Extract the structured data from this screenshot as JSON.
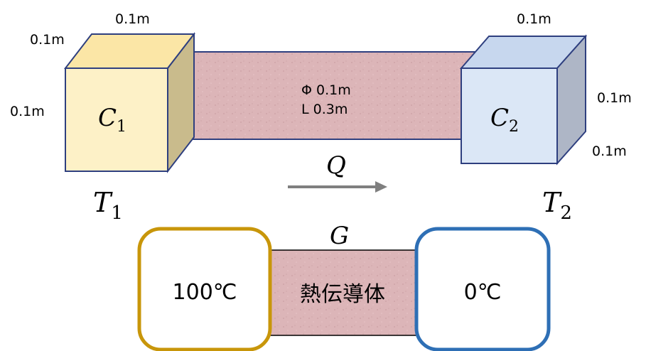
{
  "colors": {
    "cube_left_front": "#fdf1c7",
    "cube_left_top": "#fbe6a6",
    "cube_left_side": "#c9bb8c",
    "cube_right_front": "#dbe7f6",
    "cube_right_top": "#c7d7ee",
    "cube_right_side": "#aeb6c6",
    "cube_edge": "#2e3f7f",
    "rod_fill": "#dcb5b8",
    "rod_edge": "#2e3f7f",
    "hot_box_border": "#c8960a",
    "cold_box_border": "#2e6fb5",
    "conductor_fill": "#dbb4b6",
    "arrow": "#7f7f7f"
  },
  "top_diagram": {
    "left_cube": {
      "label_base": "C",
      "label_sub": "1",
      "dim_top": "0.1m",
      "dim_depth": "0.1m",
      "dim_height": "0.1m"
    },
    "rod": {
      "diameter_label": "Φ 0.1m",
      "length_label": "L 0.3m"
    },
    "right_cube": {
      "label_base": "C",
      "label_sub": "2",
      "dim_top": "0.1m",
      "dim_height": "0.1m",
      "dim_depth": "0.1m"
    },
    "heat_flow": {
      "label": "Q"
    },
    "temp_left": {
      "base": "T",
      "sub": "1"
    },
    "temp_right": {
      "base": "T",
      "sub": "2"
    }
  },
  "bottom_diagram": {
    "conductance_label": "G",
    "hot_box_label": "100℃",
    "conductor_label": "熱伝導体",
    "cold_box_label": "0℃"
  }
}
